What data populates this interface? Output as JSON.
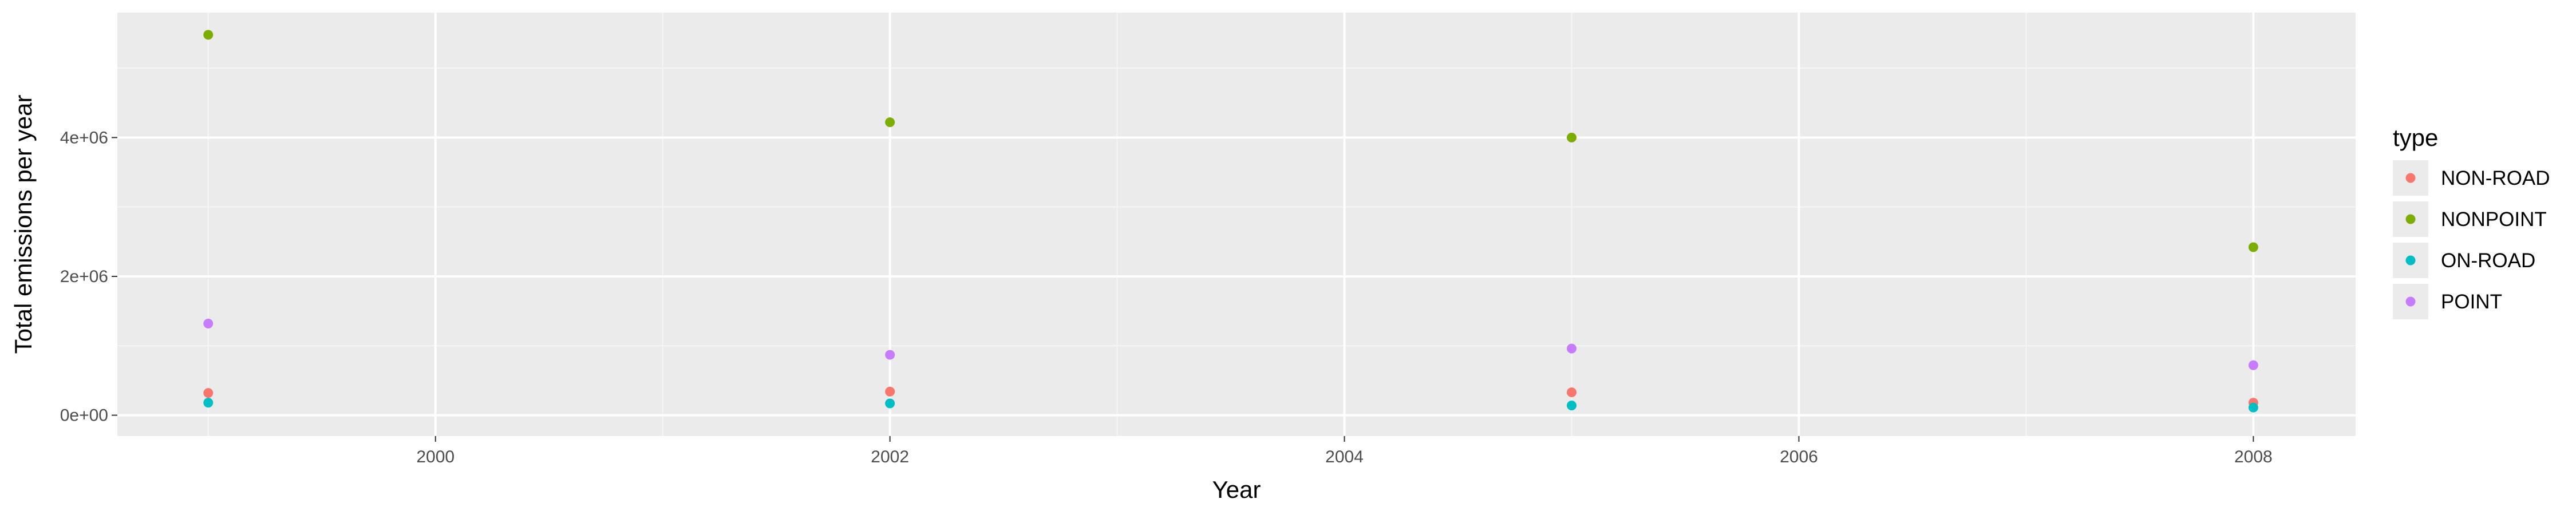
{
  "chart_data": {
    "type": "scatter",
    "xlabel": "Year",
    "ylabel": "Total emissions per year",
    "xlim": [
      1998.6,
      2008.45
    ],
    "ylim": [
      -300000,
      5800000
    ],
    "x_ticks": [
      2000,
      2002,
      2004,
      2006,
      2008
    ],
    "x_tick_labels": [
      "2000",
      "2002",
      "2004",
      "2006",
      "2008"
    ],
    "y_ticks": [
      0,
      2000000,
      4000000
    ],
    "y_tick_labels": [
      "0e+00",
      "2e+06",
      "4e+06"
    ],
    "grid": true,
    "legend": {
      "title": "type",
      "placement": "right"
    },
    "series": [
      {
        "name": "NON-ROAD",
        "color": "#F8766D",
        "x": [
          1999,
          2002,
          2005,
          2008
        ],
        "y": [
          320000,
          340000,
          330000,
          180000
        ]
      },
      {
        "name": "NONPOINT",
        "color": "#7CAE00",
        "x": [
          1999,
          2002,
          2005,
          2008
        ],
        "y": [
          5480000,
          4220000,
          4000000,
          2420000
        ]
      },
      {
        "name": "ON-ROAD",
        "color": "#00BFC4",
        "x": [
          1999,
          2002,
          2005,
          2008
        ],
        "y": [
          180000,
          170000,
          140000,
          110000
        ]
      },
      {
        "name": "POINT",
        "color": "#C77CFF",
        "x": [
          1999,
          2002,
          2005,
          2008
        ],
        "y": [
          1320000,
          870000,
          960000,
          720000
        ]
      }
    ]
  }
}
